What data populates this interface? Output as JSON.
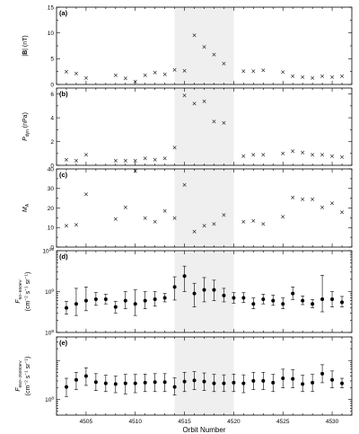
{
  "chart_data": [
    {
      "type": "scatter",
      "panel_label": "(a)",
      "ylabel_parts": [
        "|",
        "B",
        "| (nT)"
      ],
      "ylim": [
        0,
        15
      ],
      "yticks": [
        0,
        5,
        10,
        15
      ],
      "ytick_labels": [
        "0",
        "5",
        "10",
        "15"
      ],
      "marker": "×",
      "x": [
        4503,
        4504,
        4505,
        4508,
        4509,
        4510,
        4511,
        4512,
        4513,
        4514,
        4515,
        4516,
        4517,
        4518,
        4519,
        4521,
        4522,
        4523,
        4525,
        4526,
        4527,
        4528,
        4529,
        4530,
        4531
      ],
      "values": [
        2.5,
        2.2,
        1.3,
        1.8,
        1.2,
        0.6,
        1.8,
        2.3,
        2.0,
        2.9,
        2.7,
        9.6,
        7.3,
        5.8,
        4.1,
        2.6,
        2.6,
        2.8,
        2.4,
        1.6,
        1.5,
        1.3,
        1.6,
        1.5,
        1.6
      ]
    },
    {
      "type": "scatter",
      "panel_label": "(b)",
      "ylabel_parts": [
        "P",
        "dyn",
        " (nPa)"
      ],
      "ylim": [
        0,
        6.5
      ],
      "yticks": [
        0,
        2,
        4,
        6
      ],
      "ytick_labels": [
        "0",
        "2",
        "4",
        "6"
      ],
      "marker": "×",
      "x": [
        4503,
        4504,
        4505,
        4508,
        4509,
        4510,
        4511,
        4512,
        4513,
        4514,
        4515,
        4516,
        4517,
        4518,
        4519,
        4521,
        4522,
        4523,
        4525,
        4526,
        4527,
        4528,
        4529,
        4530,
        4531
      ],
      "values": [
        0.5,
        0.4,
        0.9,
        0.4,
        0.4,
        0.4,
        0.6,
        0.5,
        0.6,
        1.5,
        5.9,
        5.2,
        5.4,
        3.7,
        3.6,
        0.8,
        0.9,
        0.9,
        1.0,
        1.2,
        1.1,
        0.9,
        0.9,
        0.8,
        0.7
      ]
    },
    {
      "type": "scatter",
      "panel_label": "(c)",
      "ylabel_parts": [
        "M",
        "A",
        ""
      ],
      "ylim": [
        0,
        40
      ],
      "yticks": [
        0,
        10,
        20,
        30,
        40
      ],
      "ytick_labels": [
        "0",
        "10",
        "20",
        "30",
        "40"
      ],
      "marker": "×",
      "x": [
        4503,
        4504,
        4505,
        4508,
        4509,
        4510,
        4511,
        4512,
        4513,
        4514,
        4515,
        4516,
        4517,
        4518,
        4519,
        4521,
        4522,
        4523,
        4525,
        4526,
        4527,
        4528,
        4529,
        4530,
        4531
      ],
      "values": [
        11,
        11.5,
        27,
        14.5,
        20.5,
        39,
        15,
        13,
        18.5,
        15,
        32,
        8,
        11,
        12,
        16.5,
        13,
        13.5,
        12,
        15.5,
        25.5,
        24.5,
        24.5,
        20.5,
        22.5,
        18
      ]
    },
    {
      "type": "scatter",
      "scale": "log",
      "panel_label": "(d)",
      "ylabel_line1_parts": [
        "F",
        "50−650eV"
      ],
      "ylabel_line2_parts": [
        "(cm",
        "−2",
        " s",
        "−1",
        " sr",
        "−1",
        ")"
      ],
      "ytick_exponents": [
        "8",
        "9",
        "10"
      ],
      "ytick_base": "10",
      "ylim": [
        100000000.0,
        10000000000.0
      ],
      "marker": "●",
      "x": [
        4503,
        4504,
        4505,
        4506,
        4507,
        4508,
        4509,
        4510,
        4511,
        4512,
        4513,
        4514,
        4515,
        4516,
        4517,
        4518,
        4519,
        4520,
        4521,
        4522,
        4523,
        4524,
        4525,
        4526,
        4527,
        4528,
        4529,
        4530,
        4531
      ],
      "values": [
        400000000.0,
        500000000.0,
        600000000.0,
        650000000.0,
        650000000.0,
        420000000.0,
        600000000.0,
        500000000.0,
        600000000.0,
        650000000.0,
        700000000.0,
        1300000000.0,
        2400000000.0,
        900000000.0,
        1100000000.0,
        1100000000.0,
        800000000.0,
        700000000.0,
        700000000.0,
        500000000.0,
        650000000.0,
        600000000.0,
        500000000.0,
        900000000.0,
        600000000.0,
        500000000.0,
        650000000.0,
        650000000.0,
        550000000.0
      ],
      "errors_low": [
        280000000.0,
        260000000.0,
        340000000.0,
        460000000.0,
        500000000.0,
        300000000.0,
        380000000.0,
        260000000.0,
        380000000.0,
        440000000.0,
        560000000.0,
        620000000.0,
        1000000000.0,
        420000000.0,
        560000000.0,
        600000000.0,
        560000000.0,
        520000000.0,
        540000000.0,
        380000000.0,
        500000000.0,
        460000000.0,
        380000000.0,
        640000000.0,
        480000000.0,
        400000000.0,
        320000000.0,
        420000000.0,
        420000000.0
      ],
      "errors_high": [
        580000000.0,
        1200000000.0,
        1300000000.0,
        950000000.0,
        860000000.0,
        580000000.0,
        1000000000.0,
        1100000000.0,
        1000000000.0,
        1000000000.0,
        900000000.0,
        2300000000.0,
        4200000000.0,
        1600000000.0,
        2200000000.0,
        1900000000.0,
        1200000000.0,
        940000000.0,
        940000000.0,
        700000000.0,
        860000000.0,
        820000000.0,
        700000000.0,
        1300000000.0,
        780000000.0,
        640000000.0,
        2500000000.0,
        1000000000.0,
        760000000.0
      ]
    },
    {
      "type": "scatter",
      "scale": "log",
      "panel_label": "(e)",
      "ylabel_line1_parts": [
        "F",
        "650−25000eV"
      ],
      "ylabel_line2_parts": [
        "(cm",
        "−2",
        " s",
        "−1",
        " sr",
        "−1",
        ")"
      ],
      "ytick_exponents": [
        "8"
      ],
      "ytick_base": "10",
      "ylim": [
        40000000.0,
        4000000000.0
      ],
      "xlabel": "Orbit Number",
      "xticks": [
        4505,
        4510,
        4515,
        4520,
        4525,
        4530
      ],
      "xtick_labels": [
        "4505",
        "4510",
        "4515",
        "4520",
        "4525",
        "4530"
      ],
      "marker": "●",
      "x": [
        4503,
        4504,
        4505,
        4506,
        4507,
        4508,
        4509,
        4510,
        4511,
        4512,
        4513,
        4514,
        4515,
        4516,
        4517,
        4518,
        4519,
        4520,
        4521,
        4522,
        4523,
        4524,
        4525,
        4526,
        4527,
        4528,
        4529,
        4530,
        4531
      ],
      "values": [
        210000000.0,
        320000000.0,
        400000000.0,
        280000000.0,
        260000000.0,
        250000000.0,
        260000000.0,
        260000000.0,
        270000000.0,
        280000000.0,
        280000000.0,
        210000000.0,
        290000000.0,
        310000000.0,
        290000000.0,
        260000000.0,
        260000000.0,
        270000000.0,
        260000000.0,
        300000000.0,
        300000000.0,
        270000000.0,
        350000000.0,
        340000000.0,
        250000000.0,
        270000000.0,
        460000000.0,
        320000000.0,
        260000000.0
      ],
      "errors_low": [
        120000000.0,
        180000000.0,
        230000000.0,
        170000000.0,
        160000000.0,
        150000000.0,
        140000000.0,
        150000000.0,
        160000000.0,
        160000000.0,
        160000000.0,
        130000000.0,
        160000000.0,
        180000000.0,
        170000000.0,
        160000000.0,
        160000000.0,
        160000000.0,
        150000000.0,
        180000000.0,
        180000000.0,
        160000000.0,
        200000000.0,
        200000000.0,
        160000000.0,
        160000000.0,
        270000000.0,
        200000000.0,
        200000000.0
      ],
      "errors_high": [
        350000000.0,
        500000000.0,
        650000000.0,
        460000000.0,
        420000000.0,
        400000000.0,
        440000000.0,
        440000000.0,
        450000000.0,
        460000000.0,
        460000000.0,
        360000000.0,
        500000000.0,
        520000000.0,
        480000000.0,
        440000000.0,
        430000000.0,
        450000000.0,
        430000000.0,
        500000000.0,
        500000000.0,
        440000000.0,
        600000000.0,
        580000000.0,
        420000000.0,
        440000000.0,
        780000000.0,
        540000000.0,
        350000000.0
      ]
    }
  ],
  "shared_x": {
    "xlim": [
      4502,
      4532
    ],
    "shaded_interval": [
      4514,
      4520
    ]
  }
}
